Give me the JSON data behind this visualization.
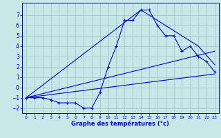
{
  "xlabel": "Graphe des températures (°c)",
  "xlim": [
    -0.5,
    23.5
  ],
  "ylim": [
    -2.5,
    8.2
  ],
  "xticks": [
    0,
    1,
    2,
    3,
    4,
    5,
    6,
    7,
    8,
    9,
    10,
    11,
    12,
    13,
    14,
    15,
    16,
    17,
    18,
    19,
    20,
    21,
    22,
    23
  ],
  "yticks": [
    -2,
    -1,
    0,
    1,
    2,
    3,
    4,
    5,
    6,
    7
  ],
  "bg_color": "#c8e8e8",
  "grid_color": "#a0c8c8",
  "line_color": "#0000cc",
  "curve1_x": [
    0,
    1,
    2,
    3,
    4,
    5,
    6,
    7,
    8,
    9,
    10,
    11,
    12,
    13,
    14,
    15,
    16,
    17,
    18,
    19,
    20,
    21,
    22,
    23
  ],
  "curve1_y": [
    -1.0,
    -1.0,
    -1.0,
    -1.2,
    -1.5,
    -1.5,
    -1.5,
    -2.0,
    -2.0,
    -0.5,
    2.0,
    4.0,
    6.5,
    6.5,
    7.5,
    7.5,
    6.0,
    5.0,
    5.0,
    3.5,
    4.0,
    3.0,
    2.5,
    1.5
  ],
  "line2_x": [
    0,
    23
  ],
  "line2_y": [
    -1.0,
    1.3
  ],
  "line3_x": [
    0,
    23
  ],
  "line3_y": [
    -1.0,
    3.5
  ],
  "line4_x": [
    0,
    14,
    21,
    23
  ],
  "line4_y": [
    -1.0,
    7.5,
    4.0,
    2.2
  ]
}
